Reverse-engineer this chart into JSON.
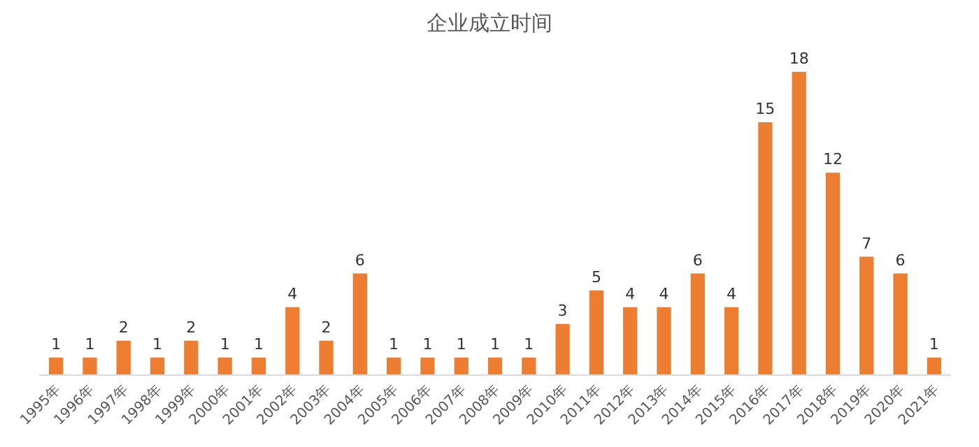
{
  "chart_data": {
    "type": "bar",
    "title": "企业成立时间",
    "categories": [
      "1995年",
      "1996年",
      "1997年",
      "1998年",
      "1999年",
      "2000年",
      "2001年",
      "2002年",
      "2003年",
      "2004年",
      "2005年",
      "2006年",
      "2007年",
      "2008年",
      "2009年",
      "2010年",
      "2011年",
      "2012年",
      "2013年",
      "2014年",
      "2015年",
      "2016年",
      "2017年",
      "2018年",
      "2019年",
      "2020年",
      "2021年"
    ],
    "values": [
      1,
      1,
      2,
      1,
      2,
      1,
      1,
      4,
      2,
      6,
      1,
      1,
      1,
      1,
      1,
      3,
      5,
      4,
      4,
      6,
      4,
      15,
      18,
      12,
      7,
      6,
      1
    ],
    "color": "#ed7d31",
    "data_labels": true
  }
}
